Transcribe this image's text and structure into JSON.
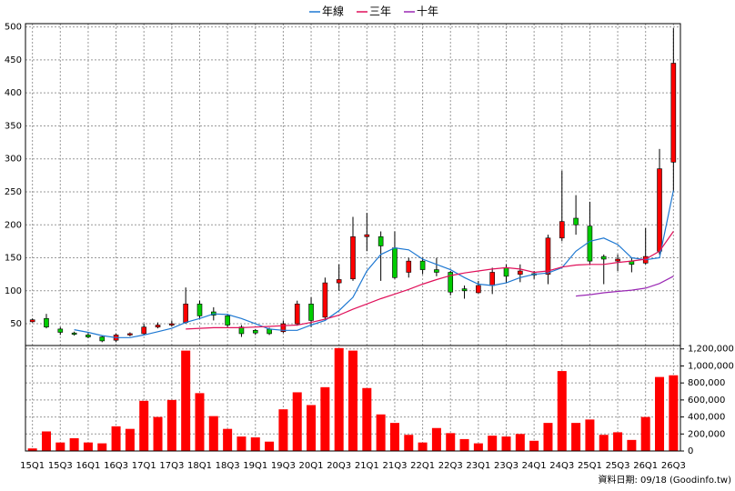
{
  "chart_data": [
    {
      "type": "candlestick",
      "open": [
        53,
        58,
        42,
        36,
        33,
        30,
        25,
        33,
        35,
        45,
        48,
        52,
        80,
        68,
        62,
        45,
        40,
        42,
        38,
        50,
        80,
        60,
        112,
        118,
        182,
        182,
        165,
        128,
        145,
        132,
        128,
        103,
        97,
        108,
        135,
        125,
        126,
        125,
        180,
        210,
        198,
        152,
        145,
        145,
        142,
        160,
        295
      ],
      "high": [
        58,
        65,
        45,
        38,
        36,
        32,
        35,
        37,
        50,
        52,
        55,
        105,
        85,
        75,
        65,
        48,
        42,
        44,
        55,
        85,
        90,
        120,
        140,
        212,
        218,
        190,
        190,
        150,
        150,
        150,
        130,
        108,
        115,
        135,
        140,
        140,
        130,
        185,
        282,
        245,
        235,
        155,
        155,
        150,
        195,
        315,
        498
      ],
      "low": [
        52,
        43,
        33,
        32,
        28,
        22,
        22,
        31,
        33,
        43,
        46,
        50,
        58,
        55,
        45,
        30,
        33,
        33,
        36,
        47,
        45,
        55,
        100,
        115,
        160,
        115,
        118,
        120,
        125,
        122,
        93,
        88,
        96,
        95,
        112,
        113,
        118,
        110,
        175,
        185,
        140,
        110,
        130,
        128,
        140,
        155,
        250
      ],
      "close": [
        56,
        45,
        37,
        34,
        30,
        24,
        33,
        35,
        45,
        48,
        50,
        80,
        62,
        63,
        48,
        35,
        36,
        35,
        50,
        80,
        55,
        112,
        117,
        182,
        185,
        168,
        120,
        145,
        132,
        128,
        98,
        100,
        108,
        128,
        122,
        130,
        124,
        180,
        205,
        200,
        145,
        148,
        148,
        140,
        152,
        285,
        445
      ],
      "up_color": "#ff0000",
      "down_color": "#00cc00",
      "series": [
        {
          "name": "年線",
          "color": "#1e78d2",
          "values": [
            null,
            null,
            null,
            41,
            37,
            32,
            29,
            29,
            33,
            38,
            43,
            52,
            58,
            65,
            64,
            58,
            50,
            42,
            40,
            40,
            48,
            55,
            70,
            90,
            130,
            155,
            165,
            162,
            148,
            140,
            132,
            120,
            110,
            108,
            112,
            120,
            125,
            127,
            135,
            160,
            175,
            180,
            170,
            150,
            147,
            150,
            252
          ]
        },
        {
          "name": "三年",
          "color": "#e0105a",
          "values": [
            null,
            null,
            null,
            null,
            null,
            null,
            null,
            null,
            null,
            null,
            null,
            42,
            43,
            44,
            44,
            44,
            45,
            46,
            47,
            48,
            52,
            57,
            63,
            72,
            80,
            88,
            95,
            102,
            110,
            117,
            123,
            127,
            130,
            133,
            135,
            133,
            128,
            130,
            136,
            139,
            140,
            140,
            143,
            145,
            148,
            160,
            190
          ]
        },
        {
          "name": "十年",
          "color": "#9a28b4",
          "values": [
            null,
            null,
            null,
            null,
            null,
            null,
            null,
            null,
            null,
            null,
            null,
            null,
            null,
            null,
            null,
            null,
            null,
            null,
            null,
            null,
            null,
            null,
            null,
            null,
            null,
            null,
            null,
            null,
            null,
            null,
            null,
            null,
            null,
            null,
            null,
            null,
            null,
            null,
            null,
            92,
            94,
            97,
            99,
            101,
            104,
            111,
            122
          ]
        }
      ],
      "ylim": [
        17,
        505
      ],
      "yticks": [
        50,
        100,
        150,
        200,
        250,
        300,
        350,
        400,
        450,
        500
      ],
      "grid": true
    },
    {
      "type": "bar",
      "categories": [
        "15Q1",
        null,
        "15Q3",
        null,
        "16Q1",
        null,
        "16Q3",
        null,
        "17Q1",
        null,
        "17Q3",
        null,
        "18Q1",
        null,
        "18Q3",
        null,
        "19Q1",
        null,
        "19Q3",
        null,
        "20Q1",
        null,
        "20Q3",
        null,
        "21Q1",
        null,
        "21Q3",
        null,
        "22Q1",
        null,
        "22Q3",
        null,
        "23Q1",
        null,
        "23Q3",
        null,
        "24Q1",
        null,
        "24Q3",
        null,
        "25Q1",
        null,
        "25Q3",
        null,
        "26Q1",
        null,
        "26Q3"
      ],
      "values": [
        30000,
        230000,
        100000,
        150000,
        100000,
        90000,
        290000,
        260000,
        590000,
        400000,
        600000,
        1180000,
        680000,
        410000,
        260000,
        170000,
        160000,
        110000,
        490000,
        690000,
        540000,
        750000,
        1210000,
        1180000,
        740000,
        430000,
        330000,
        190000,
        100000,
        270000,
        210000,
        140000,
        90000,
        180000,
        170000,
        200000,
        120000,
        330000,
        940000,
        330000,
        370000,
        190000,
        220000,
        130000,
        400000,
        870000,
        890000
      ],
      "color": "#ff0000",
      "ylim": [
        0,
        1240000
      ],
      "yticks": [
        0,
        {
          "value": 200000,
          "label": "200,000"
        },
        {
          "value": 400000,
          "label": "400,000"
        },
        {
          "value": 600000,
          "label": "600,000"
        },
        {
          "value": 800000,
          "label": "800,000"
        },
        {
          "value": 1000000,
          "label": "1,000,000"
        },
        {
          "value": 1200000,
          "label": "1,200,000"
        }
      ],
      "grid": true
    }
  ],
  "footer": "資料日期: 09/18 (Goodinfo.tw)"
}
